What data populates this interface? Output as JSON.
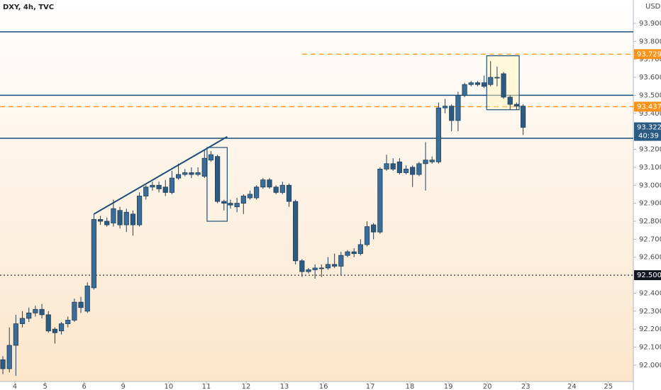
{
  "header": {
    "symbol": "DXY, 4h, TVC"
  },
  "chart_data": {
    "type": "candlestick",
    "currency": "USD",
    "up_color": "#3a6e98",
    "down_color": "#2c5a80",
    "wick_color": "#1f3f5c",
    "open": [
      92.03,
      91.98,
      92.11,
      92.23,
      92.26,
      92.29,
      92.31,
      92.28,
      92.2,
      92.19,
      92.23,
      92.25,
      92.35,
      92.3,
      92.43,
      92.81,
      92.8,
      92.79,
      92.86,
      92.78,
      92.84,
      92.78,
      92.94,
      92.99,
      93.0,
      92.99,
      92.96,
      93.04,
      93.06,
      93.07,
      93.06,
      93.05,
      93.14,
      93.16,
      92.91,
      92.9,
      92.88,
      92.9,
      92.93,
      92.93,
      92.99,
      93.03,
      92.99,
      92.96,
      93.0,
      92.91,
      92.58,
      92.52,
      92.53,
      92.54,
      92.54,
      92.56,
      92.55,
      92.61,
      92.63,
      92.62,
      92.67,
      92.78,
      92.74,
      93.09,
      93.12,
      93.13,
      93.07,
      93.1,
      93.06,
      93.12,
      93.13,
      93.13,
      93.43,
      93.44,
      93.36,
      93.5,
      93.56,
      93.57,
      93.57,
      93.56,
      93.6,
      93.62,
      93.49,
      93.45,
      93.44
    ],
    "high": [
      92.05,
      92.21,
      92.28,
      92.3,
      92.32,
      92.33,
      92.34,
      92.3,
      92.21,
      92.24,
      92.27,
      92.37,
      92.38,
      92.46,
      92.84,
      92.83,
      92.82,
      92.92,
      92.88,
      92.87,
      92.86,
      92.96,
      93.0,
      93.02,
      93.02,
      93.03,
      93.08,
      93.12,
      93.09,
      93.1,
      93.1,
      93.2,
      93.19,
      93.17,
      92.92,
      92.92,
      92.93,
      92.95,
      92.97,
      93.0,
      93.04,
      93.04,
      93.0,
      93.02,
      93.01,
      92.92,
      92.59,
      92.54,
      92.56,
      92.56,
      92.6,
      92.62,
      92.63,
      92.64,
      92.65,
      92.7,
      92.8,
      92.79,
      93.1,
      93.17,
      93.15,
      93.15,
      93.11,
      93.11,
      93.13,
      93.24,
      93.16,
      93.46,
      93.48,
      93.45,
      93.52,
      93.57,
      93.58,
      93.58,
      93.61,
      93.69,
      93.66,
      93.63,
      93.5,
      93.46,
      93.45
    ],
    "low": [
      91.95,
      91.96,
      91.94,
      92.21,
      92.24,
      92.27,
      92.26,
      92.18,
      92.12,
      92.17,
      92.21,
      92.24,
      92.29,
      92.29,
      92.42,
      92.78,
      92.77,
      92.77,
      92.76,
      92.74,
      92.72,
      92.77,
      92.92,
      92.97,
      92.96,
      92.94,
      92.95,
      93.03,
      93.05,
      93.04,
      93.05,
      93.04,
      93.13,
      92.9,
      92.86,
      92.87,
      92.85,
      92.84,
      92.92,
      92.92,
      92.98,
      92.98,
      92.95,
      92.95,
      92.88,
      92.56,
      92.49,
      92.51,
      92.48,
      92.49,
      92.53,
      92.54,
      92.5,
      92.6,
      92.6,
      92.61,
      92.66,
      92.7,
      92.73,
      93.08,
      93.08,
      93.06,
      93.06,
      92.99,
      93.05,
      92.97,
      93.12,
      93.12,
      93.4,
      93.3,
      93.3,
      93.49,
      93.55,
      93.55,
      93.54,
      93.55,
      93.55,
      93.48,
      93.42,
      93.42,
      93.28
    ],
    "close": [
      91.98,
      92.11,
      92.23,
      92.26,
      92.29,
      92.31,
      92.28,
      92.19,
      92.18,
      92.23,
      92.25,
      92.35,
      92.32,
      92.44,
      92.81,
      92.8,
      92.78,
      92.87,
      92.78,
      92.85,
      92.78,
      92.94,
      92.99,
      93.0,
      92.98,
      92.96,
      93.04,
      93.06,
      93.07,
      93.06,
      93.07,
      93.15,
      93.17,
      92.91,
      92.9,
      92.89,
      92.9,
      92.94,
      92.95,
      92.99,
      93.03,
      92.99,
      92.96,
      93.0,
      92.91,
      92.58,
      92.52,
      92.53,
      92.54,
      92.54,
      92.56,
      92.55,
      92.61,
      92.63,
      92.62,
      92.67,
      92.77,
      92.74,
      93.09,
      93.12,
      93.09,
      93.07,
      93.09,
      93.06,
      93.12,
      93.14,
      93.14,
      93.43,
      93.44,
      93.36,
      93.5,
      93.56,
      93.57,
      93.56,
      93.55,
      93.6,
      93.6,
      93.49,
      93.45,
      93.44,
      93.322
    ],
    "xlim": [
      -0.44,
      96.95
    ],
    "xticks": [
      {
        "value": 1.85,
        "label": "4"
      },
      {
        "value": 6.5,
        "label": "5"
      },
      {
        "value": 12.5,
        "label": "6"
      },
      {
        "value": 18.5,
        "label": "9"
      },
      {
        "value": 25.5,
        "label": "10"
      },
      {
        "value": 31.3,
        "label": "11"
      },
      {
        "value": 37.4,
        "label": "12"
      },
      {
        "value": 43.3,
        "label": "13"
      },
      {
        "value": 49.3,
        "label": "16"
      },
      {
        "value": 56.5,
        "label": "17"
      },
      {
        "value": 62.6,
        "label": "18"
      },
      {
        "value": 68.5,
        "label": "19"
      },
      {
        "value": 74.5,
        "label": "20"
      },
      {
        "value": 80.4,
        "label": "23"
      },
      {
        "value": 87.5,
        "label": "24"
      },
      {
        "value": 93.1,
        "label": "25"
      }
    ],
    "ylim": [
      91.909,
      94.03
    ],
    "yticks": [
      {
        "value": 92.0,
        "label": "92.000"
      },
      {
        "value": 92.1,
        "label": "92.100"
      },
      {
        "value": 92.2,
        "label": "92.200"
      },
      {
        "value": 92.3,
        "label": "92.300"
      },
      {
        "value": 92.4,
        "label": "92.400"
      },
      {
        "value": 92.6,
        "label": "92.600"
      },
      {
        "value": 92.7,
        "label": "92.700"
      },
      {
        "value": 92.8,
        "label": "92.800"
      },
      {
        "value": 92.9,
        "label": "92.900"
      },
      {
        "value": 93.0,
        "label": "93.000"
      },
      {
        "value": 93.1,
        "label": "93.100"
      },
      {
        "value": 93.2,
        "label": "93.200"
      },
      {
        "value": 93.4,
        "label": "93.400"
      },
      {
        "value": 93.5,
        "label": "93.500"
      },
      {
        "value": 93.6,
        "label": "93.600"
      },
      {
        "value": 93.7,
        "label": "93.700"
      },
      {
        "value": 93.8,
        "label": "93.800"
      },
      {
        "value": 93.9,
        "label": "93.900"
      }
    ],
    "levels": [
      {
        "value": 93.853,
        "color": "#1e4f7a",
        "style": "solid"
      },
      {
        "value": 93.5,
        "color": "#1e4f7a",
        "style": "solid"
      },
      {
        "value": 93.261,
        "color": "#1e4f7a",
        "style": "solid"
      },
      {
        "value": 93.729,
        "color": "#f7931a",
        "style": "dashed"
      },
      {
        "value": 93.437,
        "color": "#f7931a",
        "style": "dashed"
      },
      {
        "value": 92.5,
        "color": "#333333",
        "style": "dotted"
      }
    ],
    "price_tags": [
      {
        "value": 93.729,
        "color": "#f7931a"
      },
      {
        "value": 93.437,
        "color": "#f7931a"
      },
      {
        "value": 93.322,
        "color": "#2b5b84",
        "countdown": "40:39"
      },
      {
        "value": 92.5,
        "label": "92.500",
        "color": "#131722"
      }
    ],
    "trend_line": {
      "x": [
        14,
        34.5
      ],
      "y": [
        92.84,
        93.27
      ],
      "color": "#1e4f7a"
    },
    "boxes": [
      {
        "x": [
          31.4,
          34.5
        ],
        "y": [
          92.8,
          93.21
        ],
        "color": "#1e4f7a"
      },
      {
        "x": [
          74.4,
          79.4
        ],
        "y": [
          93.42,
          93.72
        ],
        "color": "#1e4f7a"
      }
    ]
  }
}
